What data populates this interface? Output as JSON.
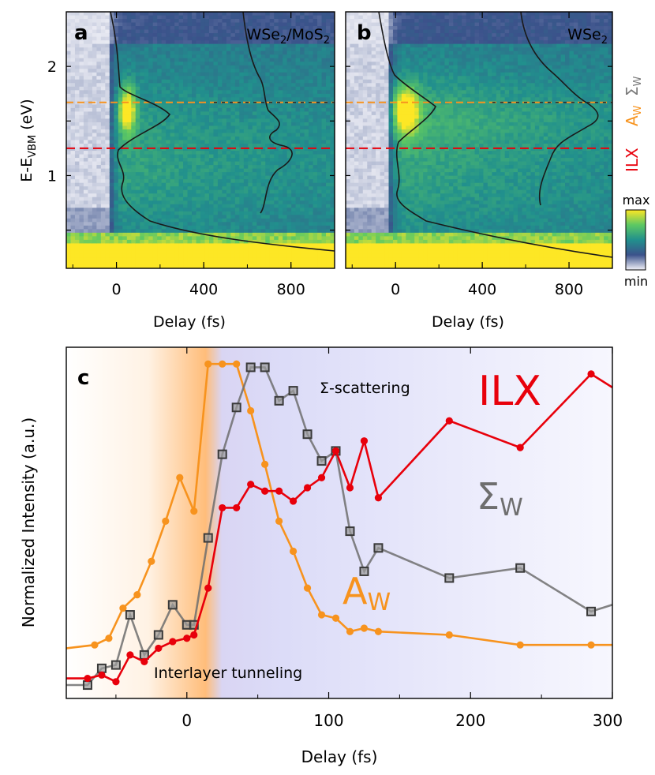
{
  "colors": {
    "ilx": "#e8000b",
    "aw": "#f7931e",
    "sigma": "#6e6e6e",
    "colormap": [
      "#440154",
      "#3b528b",
      "#21908d",
      "#5dc863",
      "#fde725"
    ],
    "low_end": "#f2f2f8"
  },
  "chart_data": [
    {
      "panel": "a",
      "type": "heatmap",
      "label": "a",
      "sample_main": "WSe",
      "sample_sub1": "2",
      "sample_mid": "/MoS",
      "sample_sub2": "2",
      "xlabel": "Delay (fs)",
      "ylabel_main": "E-E",
      "ylabel_sub": "VBM",
      "ylabel_unit": " (eV)",
      "xlim": [
        -230,
        1000
      ],
      "ylim": [
        0.15,
        2.5
      ],
      "xticks": [
        "0",
        "400",
        "800"
      ],
      "xtick_values": [
        0,
        400,
        800
      ],
      "yticks": [
        "1",
        "2"
      ],
      "ytick_values": [
        1,
        2
      ],
      "lines": [
        {
          "name": "AW",
          "y": 1.67,
          "color": "#f7931e"
        },
        {
          "name": "ILX",
          "y": 1.25,
          "color": "#e8000b"
        }
      ]
    },
    {
      "panel": "b",
      "type": "heatmap",
      "label": "b",
      "sample_main": "WSe",
      "sample_sub1": "2",
      "xlabel": "Delay (fs)",
      "xlim": [
        -230,
        1000
      ],
      "ylim": [
        0.15,
        2.5
      ],
      "xticks": [
        "0",
        "400",
        "800"
      ],
      "xtick_values": [
        0,
        400,
        800
      ]
    },
    {
      "panel": "c",
      "type": "line",
      "label": "c",
      "xlabel": "Delay (fs)",
      "ylabel": "Normalized Intensity (a.u.)",
      "xlim": [
        -85,
        300
      ],
      "ylim": [
        0,
        1.05
      ],
      "xticks": [
        "0",
        "100",
        "200",
        "300"
      ],
      "xtick_values": [
        0,
        100,
        200,
        300
      ],
      "annotations": {
        "sigma_scattering": "Σ-scattering",
        "tunneling": "Interlayer tunneling"
      },
      "series_labels": {
        "ilx": "ILX",
        "sigma_main": "Σ",
        "sigma_sub": "W",
        "aw_main": "A",
        "aw_sub": "W"
      },
      "series": [
        {
          "key": "aw",
          "x": [
            -85,
            -65,
            -55,
            -45,
            -35,
            -25,
            -15,
            -5,
            5,
            15,
            25,
            35,
            45,
            55,
            65,
            75,
            85,
            95,
            105,
            115,
            125,
            135,
            185,
            235,
            285,
            300
          ],
          "y": [
            0.15,
            0.16,
            0.18,
            0.27,
            0.31,
            0.41,
            0.53,
            0.66,
            0.56,
            1.0,
            1.0,
            1.0,
            0.86,
            0.7,
            0.53,
            0.44,
            0.33,
            0.25,
            0.24,
            0.2,
            0.21,
            0.2,
            0.19,
            0.16,
            0.16,
            0.16
          ]
        },
        {
          "key": "sigma",
          "x": [
            -85,
            -70,
            -60,
            -50,
            -40,
            -30,
            -20,
            -10,
            0,
            5,
            15,
            25,
            35,
            45,
            55,
            65,
            75,
            85,
            95,
            105,
            115,
            125,
            135,
            185,
            235,
            285,
            300
          ],
          "y": [
            0.04,
            0.04,
            0.09,
            0.1,
            0.25,
            0.13,
            0.19,
            0.28,
            0.22,
            0.22,
            0.48,
            0.73,
            0.87,
            0.99,
            0.99,
            0.89,
            0.92,
            0.79,
            0.71,
            0.74,
            0.5,
            0.38,
            0.45,
            0.36,
            0.39,
            0.26,
            0.28
          ]
        },
        {
          "key": "ilx",
          "x": [
            -85,
            -70,
            -60,
            -50,
            -40,
            -30,
            -20,
            -10,
            0,
            5,
            15,
            25,
            35,
            45,
            55,
            65,
            75,
            85,
            95,
            105,
            115,
            125,
            135,
            185,
            235,
            285,
            300
          ],
          "y": [
            0.06,
            0.06,
            0.07,
            0.05,
            0.13,
            0.11,
            0.15,
            0.17,
            0.18,
            0.19,
            0.33,
            0.57,
            0.57,
            0.64,
            0.62,
            0.62,
            0.59,
            0.63,
            0.66,
            0.74,
            0.63,
            0.77,
            0.6,
            0.83,
            0.75,
            0.97,
            0.93
          ]
        }
      ]
    }
  ],
  "colorbar": {
    "max_label": "max",
    "min_label": "min"
  },
  "side_labels": {
    "ilx": "ILX",
    "aw_main": "A",
    "aw_sub": "W",
    "sigma_main": "Σ",
    "sigma_sub": "W"
  }
}
